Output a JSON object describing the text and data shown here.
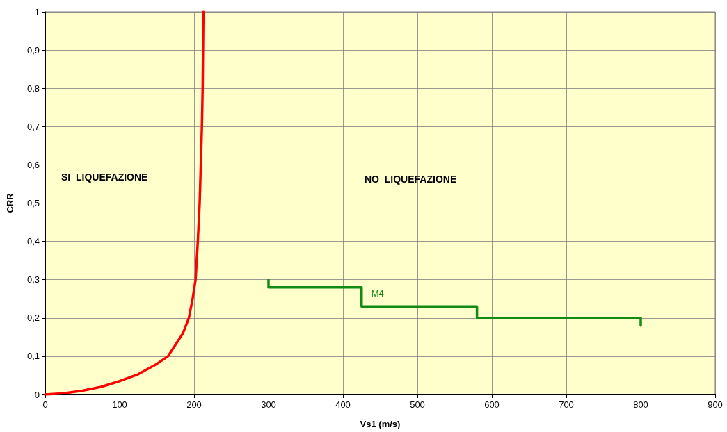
{
  "chart_data": {
    "type": "line",
    "xlabel": "Vs1 (m/s)",
    "ylabel": "CRR",
    "xlim": [
      0,
      900
    ],
    "xticks": [
      0,
      100,
      200,
      300,
      400,
      500,
      600,
      700,
      800,
      900
    ],
    "ylim": [
      0,
      1
    ],
    "yticks": [
      0,
      {
        "value": 0.1,
        "label": "0,1"
      },
      {
        "value": 0.2,
        "label": "0,2"
      },
      {
        "value": 0.3,
        "label": "0,3"
      },
      {
        "value": 0.4,
        "label": "0,4"
      },
      {
        "value": 0.5,
        "label": "0,5"
      },
      {
        "value": 0.6,
        "label": "0,6"
      },
      {
        "value": 0.7,
        "label": "0,7"
      },
      {
        "value": 0.8,
        "label": "0,8"
      },
      {
        "value": 0.9,
        "label": "0,9"
      },
      1
    ],
    "grid": true,
    "legend": false,
    "marker": "none",
    "line_style": "solid",
    "annotations": [
      "SI  LIQUEFAZIONE",
      "NO  LIQUEFAZIONE"
    ],
    "series": [
      {
        "color": "#ff0000",
        "x": [
          0,
          25,
          50,
          75,
          100,
          125,
          150,
          165,
          175,
          185,
          193,
          198,
          202,
          205,
          207.5,
          209,
          210.5,
          211.5,
          212,
          212.5
        ],
        "values": [
          0,
          0.003,
          0.01,
          0.02,
          0.035,
          0.053,
          0.08,
          0.1,
          0.13,
          0.16,
          0.2,
          0.25,
          0.3,
          0.4,
          0.5,
          0.6,
          0.7,
          0.8,
          0.9,
          1
        ]
      },
      {
        "name": "M4",
        "color": "#138a13",
        "x": [
          300,
          300,
          425,
          425,
          580,
          580,
          800,
          800
        ],
        "values": [
          0.3,
          0.28,
          0.28,
          0.23,
          0.23,
          0.2,
          0.2,
          0.18
        ]
      }
    ]
  }
}
